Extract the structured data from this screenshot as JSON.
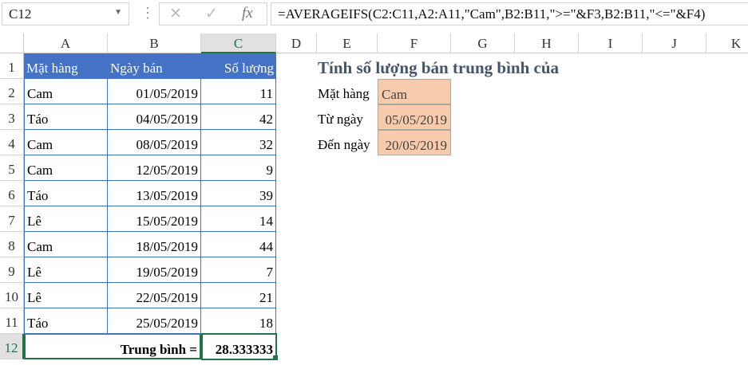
{
  "name_box": "C12",
  "formula": "=AVERAGEIFS(C2:C11,A2:A11,\"Cam\",B2:B11,\">=\"&F3,B2:B11,\"<=\"&F4)",
  "columns": [
    "A",
    "B",
    "C",
    "D",
    "E",
    "F",
    "G",
    "H",
    "I",
    "J",
    "K"
  ],
  "rows": [
    "1",
    "2",
    "3",
    "4",
    "5",
    "6",
    "7",
    "8",
    "9",
    "10",
    "11",
    "12"
  ],
  "table": {
    "headers": [
      "Mặt hàng",
      "Ngày bán",
      "Số lượng"
    ],
    "data": [
      [
        "Cam",
        "01/05/2019",
        "11"
      ],
      [
        "Táo",
        "04/05/2019",
        "42"
      ],
      [
        "Cam",
        "08/05/2019",
        "32"
      ],
      [
        "Cam",
        "12/05/2019",
        "9"
      ],
      [
        "Táo",
        "13/05/2019",
        "39"
      ],
      [
        "Lê",
        "15/05/2019",
        "14"
      ],
      [
        "Cam",
        "18/05/2019",
        "44"
      ],
      [
        "Lê",
        "19/05/2019",
        "7"
      ],
      [
        "Lê",
        "22/05/2019",
        "21"
      ],
      [
        "Táo",
        "25/05/2019",
        "18"
      ]
    ],
    "avg_label": "Trung bình =",
    "avg_value": "28.333333"
  },
  "criteria": {
    "title": "Tính số lượng bán trung bình của",
    "labels": [
      "Mặt hàng",
      "Từ ngày",
      "Đến ngày"
    ],
    "values": [
      "Cam",
      "05/05/2019",
      "20/05/2019"
    ]
  },
  "colors": {
    "header": "#4472c4",
    "input": "#f8cbad",
    "selection": "#217346"
  }
}
